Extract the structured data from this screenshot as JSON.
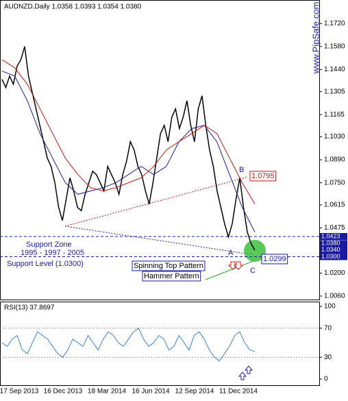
{
  "header": "AUDNZD,Daily  1.0358 1.0393 1.0354 1.0380",
  "watermark": "www.PipSafe.com",
  "chart_data": [
    {
      "type": "line",
      "ylim": [
        1.00347,
        1.1863
      ],
      "yticks": [
        {
          "value": 1.172,
          "label": "1.1720"
        },
        {
          "value": 1.158,
          "label": "1.1580"
        },
        {
          "value": 1.144,
          "label": "1.1440"
        },
        {
          "value": 1.1305,
          "label": "1.1305"
        },
        {
          "value": 1.1165,
          "label": "1.1165"
        },
        {
          "value": 1.103,
          "label": "1.1030"
        },
        {
          "value": 1.089,
          "label": "1.0890"
        },
        {
          "value": 1.075,
          "label": "1.0750"
        },
        {
          "value": 1.0615,
          "label": "1.0615"
        },
        {
          "value": 1.0475,
          "label": "1.0475"
        },
        {
          "value": 1.02,
          "label": "1.0200"
        },
        {
          "value": 1.006,
          "label": "1.0060"
        }
      ],
      "x_labels": [
        "17 Sep 2013",
        "16 Dec 2013",
        "18 Mar 2014",
        "16 Jun 2014",
        "12 Sep 2014",
        "11 Dec 2014"
      ],
      "series": [
        {
          "color": "#000000",
          "values": [
            1.138,
            1.133,
            1.14,
            1.135,
            1.146,
            1.15,
            1.158,
            1.14,
            1.13,
            1.12,
            1.11,
            1.1,
            1.09,
            1.085,
            1.075,
            1.06,
            1.052,
            1.065,
            1.078,
            1.07,
            1.06,
            1.058,
            1.068,
            1.075,
            1.082,
            1.08,
            1.075,
            1.07,
            1.085,
            1.08,
            1.075,
            1.068,
            1.08,
            1.088,
            1.1,
            1.095,
            1.085,
            1.08,
            1.07,
            1.062,
            1.075,
            1.09,
            1.105,
            1.11,
            1.1,
            1.115,
            1.12,
            1.108,
            1.115,
            1.125,
            1.11,
            1.1,
            1.12,
            1.128,
            1.11,
            1.095,
            1.085,
            1.07,
            1.06,
            1.05,
            1.042,
            1.05,
            1.065,
            1.078,
            1.06,
            1.045,
            1.038,
            1.034
          ]
        },
        {
          "color": "#1a1aa0",
          "values": [
            1.143,
            1.14,
            1.125,
            1.105,
            1.09,
            1.075,
            1.068,
            1.07,
            1.072,
            1.075,
            1.08,
            1.085,
            1.08,
            1.085,
            1.1,
            1.108,
            1.11,
            1.1,
            1.08,
            1.06,
            1.045
          ]
        },
        {
          "color": "#d01010",
          "values": [
            1.15,
            1.145,
            1.135,
            1.12,
            1.105,
            1.09,
            1.08,
            1.072,
            1.07,
            1.072,
            1.075,
            1.078,
            1.085,
            1.095,
            1.1,
            1.105,
            1.11,
            1.105,
            1.09,
            1.075,
            1.062
          ]
        }
      ],
      "price_markers": [
        {
          "value": 1.0423,
          "label": "1.0423"
        },
        {
          "value": 1.038,
          "label": "1.0380"
        },
        {
          "value": 1.034,
          "label": "1.0340"
        },
        {
          "value": 1.03,
          "label": "1.0300"
        }
      ],
      "annotations": [
        "Support Zone",
        "1995 - 1997 - 2005",
        "Support Level (1.0300)",
        "Spinning Top Pattern",
        "Hammer Pattern",
        "A",
        "B",
        "C",
        "1.0795",
        "1.0299"
      ]
    },
    {
      "type": "line",
      "title": "RSI(13) 37.8697",
      "ylim": [
        -8.5,
        106.6
      ],
      "yticks": [
        100,
        70,
        30,
        0
      ],
      "series": [
        {
          "color": "#3a7fd0",
          "values": [
            50,
            45,
            55,
            60,
            40,
            35,
            50,
            65,
            60,
            55,
            45,
            35,
            30,
            40,
            55,
            50,
            45,
            60,
            50,
            40,
            55,
            65,
            60,
            50,
            45,
            55,
            65,
            70,
            55,
            45,
            50,
            60,
            55,
            40,
            45,
            60,
            50,
            40,
            60,
            65,
            55,
            40,
            30,
            25,
            35,
            45,
            60,
            65,
            50,
            40,
            38
          ]
        }
      ]
    }
  ]
}
